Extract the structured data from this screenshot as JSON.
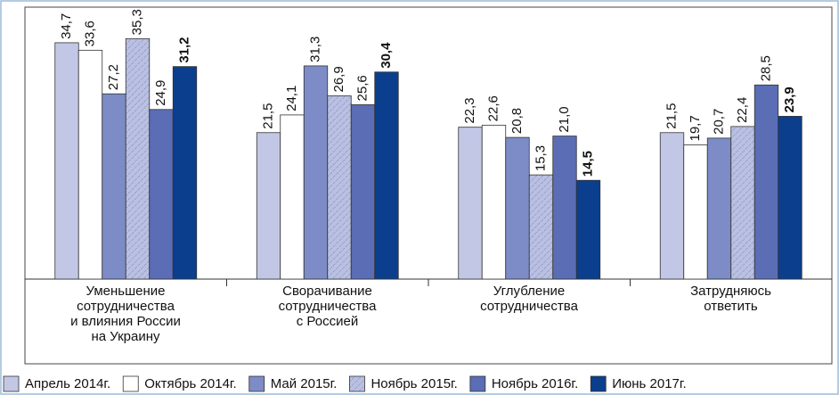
{
  "chart_data": {
    "type": "bar",
    "categories": [
      "Уменьшение\nсотрудничества\nи влияния России\nна Украину",
      "Сворачивание\nсотрудничества\nс Россией",
      "Углубление\nсотрудничества",
      "Затрудняюсь\nответить"
    ],
    "series": [
      {
        "name": "Апрель 2014г.",
        "color": "#c3c7e6",
        "values": [
          34.7,
          21.5,
          22.3,
          21.5
        ],
        "value_labels": [
          "34,7",
          "21,5",
          "22,3",
          "21,5"
        ]
      },
      {
        "name": "Октябрь 2014г.",
        "color": "#ffffff",
        "values": [
          33.6,
          24.1,
          22.6,
          19.7
        ],
        "value_labels": [
          "33,6",
          "24,1",
          "22,6",
          "19,7"
        ]
      },
      {
        "name": "Май 2015г.",
        "color": "#7d8cc6",
        "values": [
          27.2,
          31.3,
          20.8,
          20.7
        ],
        "value_labels": [
          "27,2",
          "31,3",
          "20,8",
          "20,7"
        ]
      },
      {
        "name": "Ноябрь 2015г.",
        "color": "#b9c0e2",
        "hatch": true,
        "values": [
          35.3,
          26.9,
          15.3,
          22.4
        ],
        "value_labels": [
          "35,3",
          "26,9",
          "15,3",
          "22,4"
        ]
      },
      {
        "name": "Ноябрь 2016г.",
        "color": "#5a6db5",
        "values": [
          24.9,
          25.6,
          21.0,
          28.5
        ],
        "value_labels": [
          "24,9",
          "25,6",
          "21,0",
          "28,5"
        ]
      },
      {
        "name": "Июнь 2017г.",
        "color": "#0b3e8c",
        "bold": true,
        "values": [
          31.2,
          30.4,
          14.5,
          23.9
        ],
        "value_labels": [
          "31,2",
          "30,4",
          "14,5",
          "23,9"
        ]
      }
    ],
    "ylim": [
      0,
      36
    ]
  }
}
